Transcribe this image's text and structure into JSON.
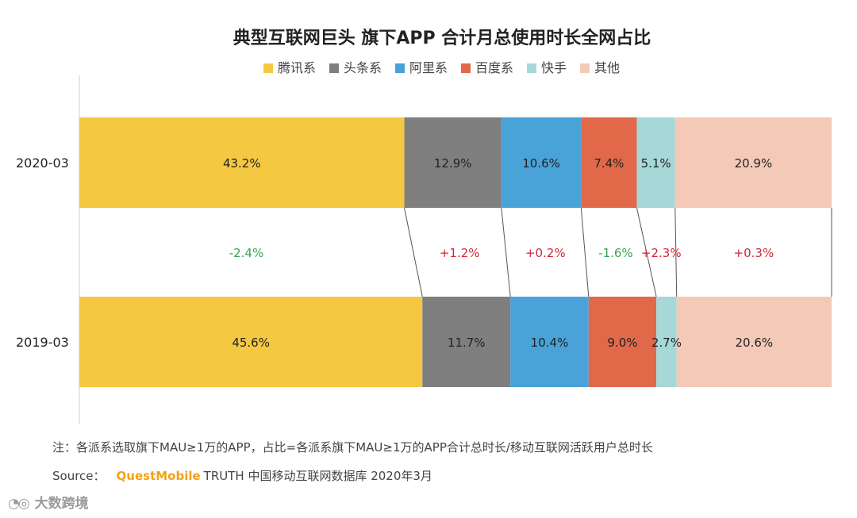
{
  "chart_data": {
    "type": "bar",
    "orientation": "horizontal",
    "stacked": true,
    "title": "典型互联网巨头 旗下APP 合计月总使用时长全网占比",
    "categories": [
      "2020-03",
      "2019-03"
    ],
    "series": [
      {
        "name": "腾讯系",
        "color": "#f5c842",
        "values": [
          43.2,
          45.6
        ],
        "labels": [
          "43.2%",
          "45.6%"
        ],
        "change": "-2.4%"
      },
      {
        "name": "头条系",
        "color": "#7f7f7f",
        "values": [
          12.9,
          11.7
        ],
        "labels": [
          "12.9%",
          "11.7%"
        ],
        "change": "+1.2%"
      },
      {
        "name": "阿里系",
        "color": "#4aa3d8",
        "values": [
          10.6,
          10.4
        ],
        "labels": [
          "10.6%",
          "10.4%"
        ],
        "change": "+0.2%"
      },
      {
        "name": "百度系",
        "color": "#e2684a",
        "values": [
          7.4,
          9.0
        ],
        "labels": [
          "7.4%",
          "9.0%"
        ],
        "change": "-1.6%"
      },
      {
        "name": "快手",
        "color": "#a6d8d8",
        "values": [
          5.1,
          2.7
        ],
        "labels": [
          "5.1%",
          "2.7%"
        ],
        "change": "+2.3%"
      },
      {
        "name": "其他",
        "color": "#f5c9b8",
        "values": [
          20.9,
          20.6
        ],
        "labels": [
          "20.9%",
          "20.6%"
        ],
        "change": "+0.3%"
      }
    ],
    "xlim": [
      0,
      100
    ],
    "legend_position": "top",
    "change_colors": {
      "negative": "#3aa35a",
      "positive": "#d0283a"
    }
  },
  "footer": {
    "note": "注：各派系选取旗下MAU≥1万的APP，占比=各派系旗下MAU≥1万的APP合计总时长/移动互联网活跃用户总时长",
    "source_label": "Source：",
    "source_brand": "QuestMobile",
    "source_text": "TRUTH 中国移动互联网数据库 2020年3月"
  },
  "logo": {
    "text": "大数跨境"
  }
}
